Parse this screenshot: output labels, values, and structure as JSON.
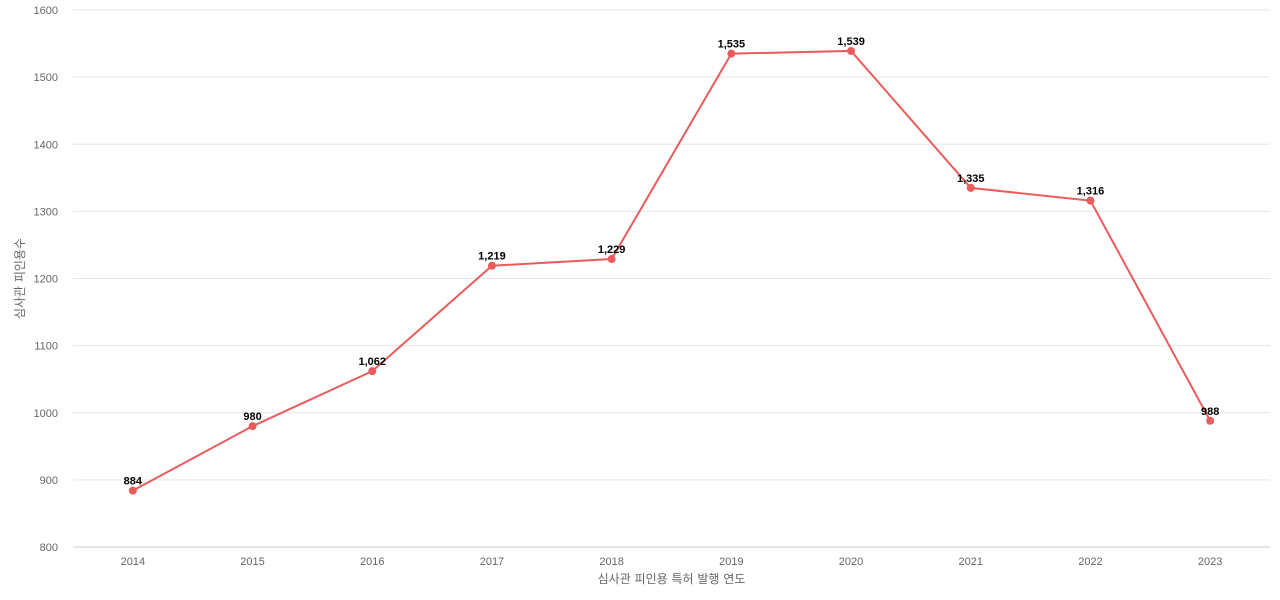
{
  "chart_data": {
    "type": "line",
    "title": "",
    "xlabel": "심사관 피인용 특허 발행 연도",
    "ylabel": "심사관 피인용수",
    "categories": [
      "2014",
      "2015",
      "2016",
      "2017",
      "2018",
      "2019",
      "2020",
      "2021",
      "2022",
      "2023"
    ],
    "series": [
      {
        "values": [
          884,
          980,
          1062,
          1219,
          1229,
          1535,
          1539,
          1335,
          1316,
          988
        ],
        "labels": [
          "884",
          "980",
          "1,062",
          "1,219",
          "1,229",
          "1,535",
          "1,539",
          "1,335",
          "1,316",
          "988"
        ],
        "color": "#e85c5c"
      }
    ],
    "ylim": [
      800,
      1600
    ],
    "yticks": [
      "800",
      "900",
      "1000",
      "1100",
      "1200",
      "1300",
      "1400",
      "1500",
      "1600"
    ],
    "grid": true,
    "legend": "none"
  }
}
